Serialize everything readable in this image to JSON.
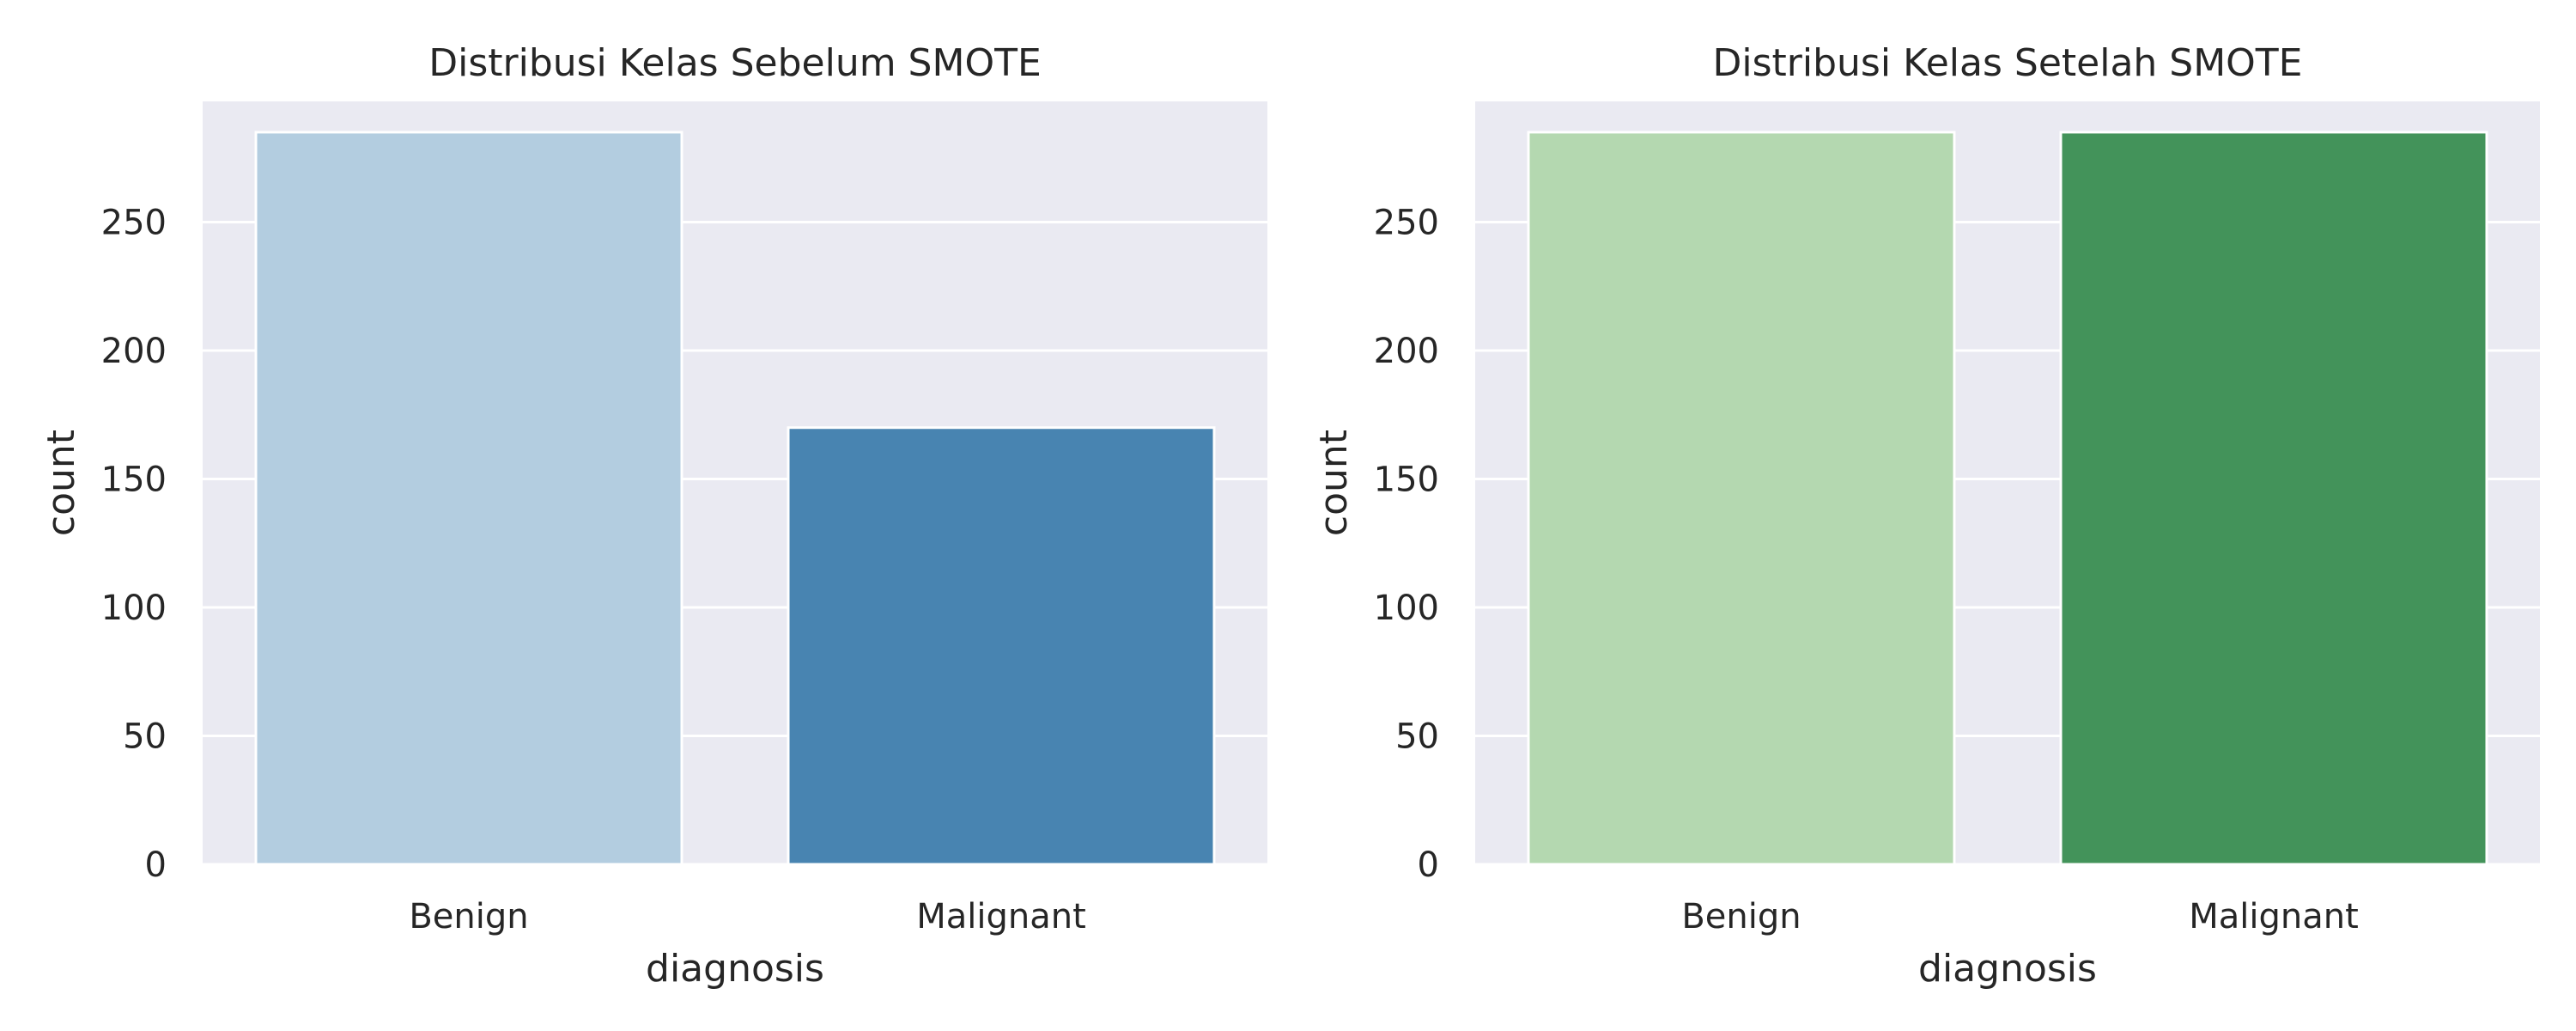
{
  "chart_data": [
    {
      "type": "bar",
      "title": "Distribusi Kelas Sebelum SMOTE",
      "xlabel": "diagnosis",
      "ylabel": "count",
      "categories": [
        "Benign",
        "Malignant"
      ],
      "values": [
        285,
        170
      ],
      "colors": [
        "#b3cde0",
        "#4884b1"
      ],
      "ylim": [
        0,
        297
      ],
      "yticks": [
        0,
        50,
        100,
        150,
        200,
        250
      ],
      "grid": true
    },
    {
      "type": "bar",
      "title": "Distribusi Kelas Setelah SMOTE",
      "xlabel": "diagnosis",
      "ylabel": "count",
      "categories": [
        "Benign",
        "Malignant"
      ],
      "values": [
        285,
        285
      ],
      "colors": [
        "#b4d8b0",
        "#43935a"
      ],
      "ylim": [
        0,
        297
      ],
      "yticks": [
        0,
        50,
        100,
        150,
        200,
        250
      ],
      "grid": true
    }
  ]
}
